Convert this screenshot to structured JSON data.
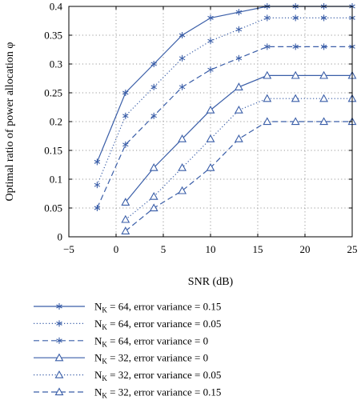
{
  "chart_data": {
    "type": "line",
    "xlabel": "SNR (dB)",
    "ylabel": "Optimal ratio of power allocation φ",
    "xlim": [
      -5,
      25
    ],
    "ylim": [
      0,
      0.4
    ],
    "xticks": [
      -5,
      0,
      5,
      10,
      15,
      20,
      25
    ],
    "yticks": [
      0,
      0.05,
      0.1,
      0.15,
      0.2,
      0.25,
      0.3,
      0.35,
      0.4
    ],
    "xtick_labels": [
      "−5",
      "0",
      "5",
      "10",
      "15",
      "20",
      "25"
    ],
    "ytick_labels": [
      "0",
      "0.05",
      "0.1",
      "0.15",
      "0.2",
      "0.25",
      "0.3",
      "0.35",
      "0.4"
    ],
    "grid": true,
    "legend_position": "below",
    "series": [
      {
        "legend": {
          "sym": "N",
          "sub": "K",
          "rest": " = 64, error variance = 0.15"
        },
        "marker": "asterisk",
        "dash": "solid",
        "x": [
          -2,
          1,
          4,
          7,
          10,
          13,
          16,
          19,
          22,
          25
        ],
        "y": [
          0.13,
          0.25,
          0.3,
          0.35,
          0.38,
          0.39,
          0.4,
          0.4,
          0.4,
          0.4
        ]
      },
      {
        "legend": {
          "sym": "N",
          "sub": "K",
          "rest": " = 64, error variance = 0.05"
        },
        "marker": "asterisk",
        "dash": "dotted",
        "x": [
          -2,
          1,
          4,
          7,
          10,
          13,
          16,
          19,
          22,
          25
        ],
        "y": [
          0.09,
          0.21,
          0.26,
          0.31,
          0.34,
          0.36,
          0.38,
          0.38,
          0.38,
          0.38
        ]
      },
      {
        "legend": {
          "sym": "N",
          "sub": "K",
          "rest": " = 64, error variance = 0"
        },
        "marker": "asterisk",
        "dash": "dashed",
        "x": [
          -2,
          1,
          4,
          7,
          10,
          13,
          16,
          19,
          22,
          25
        ],
        "y": [
          0.05,
          0.16,
          0.21,
          0.26,
          0.29,
          0.31,
          0.33,
          0.33,
          0.33,
          0.33
        ]
      },
      {
        "legend": {
          "sym": "N",
          "sub": "K",
          "rest": " = 32, error variance = 0"
        },
        "marker": "triangle",
        "dash": "solid",
        "x": [
          1,
          4,
          7,
          10,
          13,
          16,
          19,
          22,
          25
        ],
        "y": [
          0.06,
          0.12,
          0.17,
          0.22,
          0.26,
          0.28,
          0.28,
          0.28,
          0.28
        ]
      },
      {
        "legend": {
          "sym": "N",
          "sub": "K",
          "rest": " = 32, error variance = 0.05"
        },
        "marker": "triangle",
        "dash": "dotted",
        "x": [
          1,
          4,
          7,
          10,
          13,
          16,
          19,
          22,
          25
        ],
        "y": [
          0.03,
          0.07,
          0.12,
          0.17,
          0.22,
          0.24,
          0.24,
          0.24,
          0.24
        ]
      },
      {
        "legend": {
          "sym": "N",
          "sub": "K",
          "rest": " = 32, error variance = 0.15"
        },
        "marker": "triangle",
        "dash": "dashed",
        "x": [
          1,
          4,
          7,
          10,
          13,
          16,
          19,
          22,
          25
        ],
        "y": [
          0.01,
          0.05,
          0.08,
          0.12,
          0.17,
          0.2,
          0.2,
          0.2,
          0.2
        ]
      }
    ],
    "line_color": "#3a5ea8",
    "grid_color": "#9a9a9a",
    "axis_color": "#000000"
  }
}
